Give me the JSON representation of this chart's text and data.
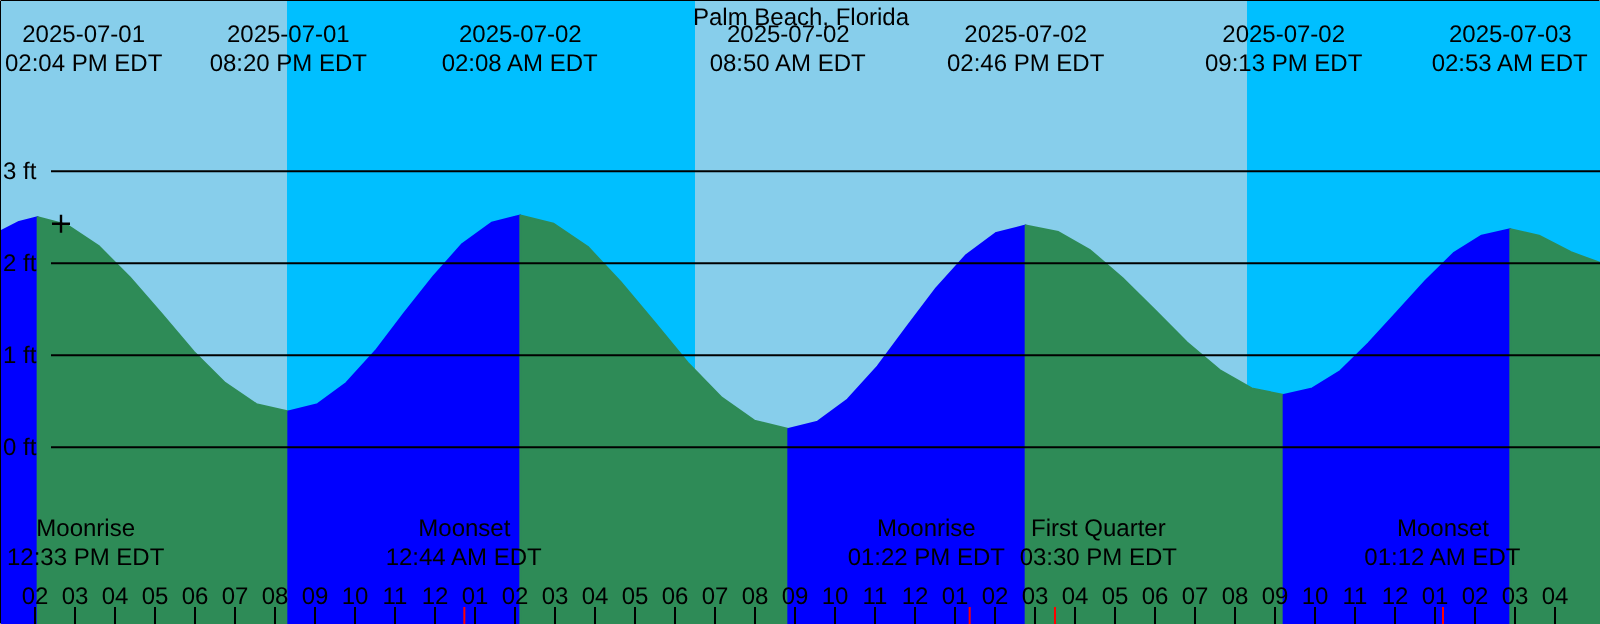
{
  "chart_data": {
    "type": "area",
    "title": "Palm Beach, Florida",
    "xlim": [
      "2025-07-01T13:09",
      "2025-07-03T05:09"
    ],
    "ylim": [
      -1.93,
      4.85
    ],
    "yticks": [
      {
        "value": 0,
        "label": "0 ft"
      },
      {
        "value": 1,
        "label": "1 ft"
      },
      {
        "value": 2,
        "label": "2 ft"
      },
      {
        "value": 3,
        "label": "3 ft"
      }
    ],
    "xticks": [
      {
        "value": "2025-07-01T14:00",
        "label": "02"
      },
      {
        "value": "2025-07-01T15:00",
        "label": "03"
      },
      {
        "value": "2025-07-01T16:00",
        "label": "04"
      },
      {
        "value": "2025-07-01T17:00",
        "label": "05"
      },
      {
        "value": "2025-07-01T18:00",
        "label": "06"
      },
      {
        "value": "2025-07-01T19:00",
        "label": "07"
      },
      {
        "value": "2025-07-01T20:00",
        "label": "08"
      },
      {
        "value": "2025-07-01T21:00",
        "label": "09"
      },
      {
        "value": "2025-07-01T22:00",
        "label": "10"
      },
      {
        "value": "2025-07-01T23:00",
        "label": "11"
      },
      {
        "value": "2025-07-02T00:00",
        "label": "12"
      },
      {
        "value": "2025-07-02T01:00",
        "label": "01"
      },
      {
        "value": "2025-07-02T02:00",
        "label": "02"
      },
      {
        "value": "2025-07-02T03:00",
        "label": "03"
      },
      {
        "value": "2025-07-02T04:00",
        "label": "04"
      },
      {
        "value": "2025-07-02T05:00",
        "label": "05"
      },
      {
        "value": "2025-07-02T06:00",
        "label": "06"
      },
      {
        "value": "2025-07-02T07:00",
        "label": "07"
      },
      {
        "value": "2025-07-02T08:00",
        "label": "08"
      },
      {
        "value": "2025-07-02T09:00",
        "label": "09"
      },
      {
        "value": "2025-07-02T10:00",
        "label": "10"
      },
      {
        "value": "2025-07-02T11:00",
        "label": "11"
      },
      {
        "value": "2025-07-02T12:00",
        "label": "12"
      },
      {
        "value": "2025-07-02T13:00",
        "label": "01"
      },
      {
        "value": "2025-07-02T14:00",
        "label": "02"
      },
      {
        "value": "2025-07-02T15:00",
        "label": "03"
      },
      {
        "value": "2025-07-02T16:00",
        "label": "04"
      },
      {
        "value": "2025-07-02T17:00",
        "label": "05"
      },
      {
        "value": "2025-07-02T18:00",
        "label": "06"
      },
      {
        "value": "2025-07-02T19:00",
        "label": "07"
      },
      {
        "value": "2025-07-02T20:00",
        "label": "08"
      },
      {
        "value": "2025-07-02T21:00",
        "label": "09"
      },
      {
        "value": "2025-07-02T22:00",
        "label": "10"
      },
      {
        "value": "2025-07-02T23:00",
        "label": "11"
      },
      {
        "value": "2025-07-03T00:00",
        "label": "12"
      },
      {
        "value": "2025-07-03T01:00",
        "label": "01"
      },
      {
        "value": "2025-07-03T02:00",
        "label": "02"
      },
      {
        "value": "2025-07-03T03:00",
        "label": "03"
      },
      {
        "value": "2025-07-03T04:00",
        "label": "04"
      }
    ],
    "grid": "y",
    "bands": [
      {
        "axis": "x",
        "from": "2025-07-01T13:09",
        "to": "2025-07-01T20:18",
        "color": "#87ceeb"
      },
      {
        "axis": "x",
        "from": "2025-07-01T20:18",
        "to": "2025-07-02T06:30",
        "color": "#00bfff"
      },
      {
        "axis": "x",
        "from": "2025-07-02T06:30",
        "to": "2025-07-02T20:18",
        "color": "#87ceeb"
      },
      {
        "axis": "x",
        "from": "2025-07-02T20:18",
        "to": "2025-07-03T05:09",
        "color": "#00bfff"
      }
    ],
    "ref_lines": [
      {
        "axis": "x",
        "value": "2025-07-02T00:44",
        "label": "Moonset\n12:44 AM EDT",
        "color": "#ff0000"
      },
      {
        "axis": "x",
        "value": "2025-07-02T13:22",
        "label": "Moonrise\n01:22 PM EDT",
        "color": "#ff0000"
      },
      {
        "axis": "x",
        "value": "2025-07-02T15:30",
        "label": "First Quarter\n03:30 PM EDT",
        "color": "#ff0000"
      },
      {
        "axis": "x",
        "value": "2025-07-03T01:12",
        "label": "Moonset\n01:12 AM EDT",
        "color": "#ff0000"
      }
    ],
    "series": [
      {
        "color": "#0000ff",
        "x": [
          "2025-07-01T13:09",
          "2025-07-01T13:36",
          "2025-07-01T14:04"
        ],
        "values": [
          2.35,
          2.45,
          2.5
        ]
      },
      {
        "color": "#2e8b57",
        "x": [
          "2025-07-01T14:04",
          "2025-07-01T14:47",
          "2025-07-01T15:35",
          "2025-07-01T16:22",
          "2025-07-01T17:10",
          "2025-07-01T17:58",
          "2025-07-01T18:45",
          "2025-07-01T19:32",
          "2025-07-01T20:20"
        ],
        "values": [
          2.5,
          2.42,
          2.19,
          1.85,
          1.45,
          1.04,
          0.7,
          0.47,
          0.39
        ]
      },
      {
        "color": "#0000ff",
        "x": [
          "2025-07-01T20:20",
          "2025-07-01T21:04",
          "2025-07-01T21:47",
          "2025-07-01T22:31",
          "2025-07-01T23:14",
          "2025-07-01T23:58",
          "2025-07-02T00:41",
          "2025-07-02T01:25",
          "2025-07-02T02:08"
        ],
        "values": [
          0.39,
          0.47,
          0.7,
          1.05,
          1.46,
          1.86,
          2.21,
          2.44,
          2.52
        ]
      },
      {
        "color": "#2e8b57",
        "x": [
          "2025-07-02T02:08",
          "2025-07-02T02:58",
          "2025-07-02T03:49",
          "2025-07-02T04:38",
          "2025-07-02T05:29",
          "2025-07-02T06:19",
          "2025-07-02T07:10",
          "2025-07-02T07:59",
          "2025-07-02T08:50"
        ],
        "values": [
          2.52,
          2.43,
          2.18,
          1.8,
          1.36,
          0.92,
          0.54,
          0.29,
          0.2
        ]
      },
      {
        "color": "#0000ff",
        "x": [
          "2025-07-02T08:50",
          "2025-07-02T09:34",
          "2025-07-02T10:19",
          "2025-07-02T11:04",
          "2025-07-02T11:48",
          "2025-07-02T12:32",
          "2025-07-02T13:17",
          "2025-07-02T14:02",
          "2025-07-02T14:46"
        ],
        "values": [
          0.2,
          0.28,
          0.52,
          0.88,
          1.31,
          1.73,
          2.09,
          2.33,
          2.41
        ]
      },
      {
        "color": "#2e8b57",
        "x": [
          "2025-07-02T14:46",
          "2025-07-02T15:35",
          "2025-07-02T16:23",
          "2025-07-02T17:11",
          "2025-07-02T18:00",
          "2025-07-02T18:48",
          "2025-07-02T19:37",
          "2025-07-02T20:25",
          "2025-07-02T21:13"
        ],
        "values": [
          2.41,
          2.34,
          2.14,
          1.84,
          1.49,
          1.14,
          0.84,
          0.64,
          0.57
        ]
      },
      {
        "color": "#0000ff",
        "x": [
          "2025-07-02T21:13",
          "2025-07-02T21:56",
          "2025-07-02T22:38",
          "2025-07-02T23:20",
          "2025-07-03T00:03",
          "2025-07-03T00:46",
          "2025-07-03T01:28",
          "2025-07-03T02:10",
          "2025-07-03T02:53"
        ],
        "values": [
          0.57,
          0.64,
          0.83,
          1.13,
          1.47,
          1.81,
          2.11,
          2.3,
          2.37
        ]
      },
      {
        "color": "#2e8b57",
        "x": [
          "2025-07-03T02:53",
          "2025-07-03T03:36",
          "2025-07-03T04:24",
          "2025-07-03T05:09"
        ],
        "values": [
          2.37,
          2.3,
          2.12,
          2.0
        ]
      },
      {
        "type": "scatter",
        "marker": "cross",
        "color": "#000000",
        "x": [
          "2025-07-01T14:39"
        ],
        "values": [
          2.43
        ]
      }
    ],
    "annotations": [
      "2025-07-01\n02:04 PM EDT",
      "2025-07-01\n08:20 PM EDT",
      "2025-07-02\n02:08 AM EDT",
      "2025-07-02\n08:50 AM EDT",
      "2025-07-02\n02:46 PM EDT",
      "2025-07-02\n09:13 PM EDT",
      "2025-07-03\n02:53 AM EDT",
      "Moonrise\n12:33 PM EDT"
    ]
  }
}
